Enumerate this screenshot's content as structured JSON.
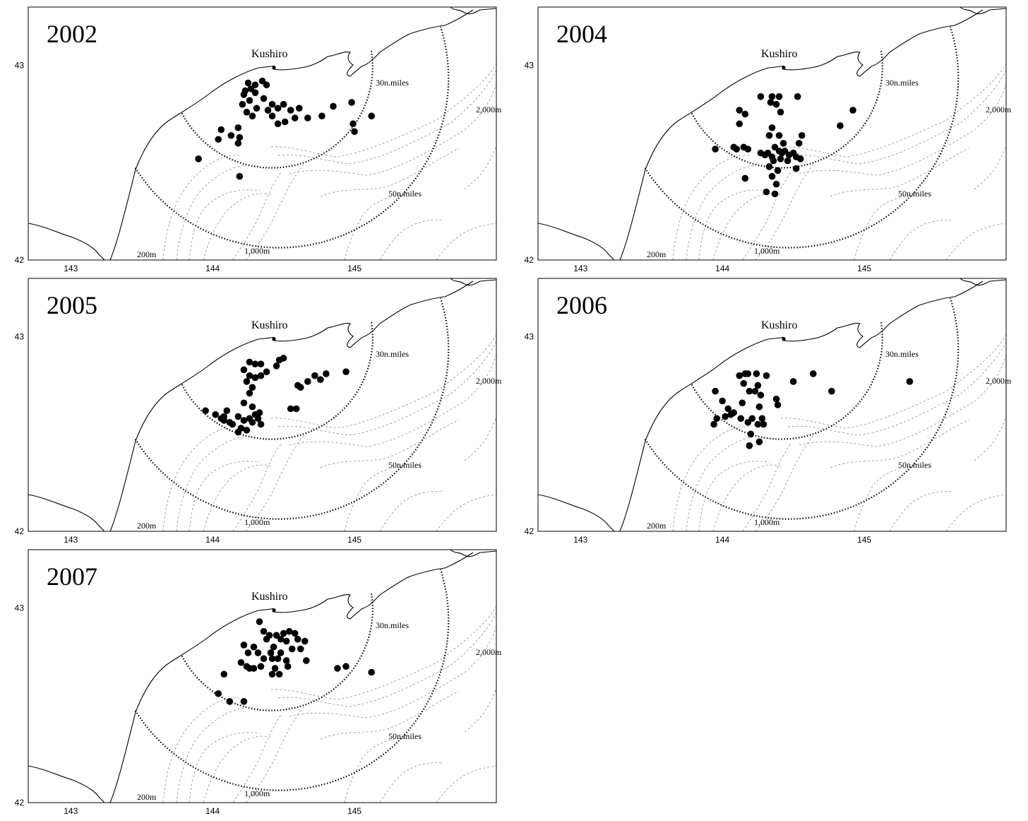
{
  "labels": {
    "place": "Kushiro",
    "ring_inner": "30n.miles",
    "ring_outer": "50n.miles",
    "depth_200": "200m",
    "depth_1000": "1,000m",
    "depth_2000": "2,000m"
  },
  "axes": {
    "x_ticks": [
      "143",
      "144",
      "145"
    ],
    "y_ticks": [
      "43",
      "42"
    ]
  },
  "chart_data": [
    {
      "type": "scatter",
      "title": "2002",
      "xlim": [
        142.7,
        146.0
      ],
      "ylim": [
        42.0,
        43.3
      ],
      "points": [
        [
          144.25,
          42.91
        ],
        [
          144.3,
          42.9
        ],
        [
          144.35,
          42.92
        ],
        [
          144.23,
          42.87
        ],
        [
          144.27,
          42.88
        ],
        [
          144.22,
          42.85
        ],
        [
          144.3,
          42.86
        ],
        [
          144.38,
          42.9
        ],
        [
          144.21,
          42.8
        ],
        [
          144.26,
          42.82
        ],
        [
          144.31,
          42.78
        ],
        [
          144.24,
          42.76
        ],
        [
          144.28,
          42.74
        ],
        [
          144.36,
          42.83
        ],
        [
          144.42,
          42.8
        ],
        [
          144.39,
          42.77
        ],
        [
          144.46,
          42.78
        ],
        [
          144.5,
          42.8
        ],
        [
          144.55,
          42.77
        ],
        [
          144.61,
          42.78
        ],
        [
          144.67,
          42.73
        ],
        [
          144.77,
          42.74
        ],
        [
          144.85,
          42.79
        ],
        [
          144.98,
          42.81
        ],
        [
          145.12,
          42.74
        ],
        [
          144.42,
          42.74
        ],
        [
          144.46,
          42.7
        ],
        [
          144.51,
          42.71
        ],
        [
          144.58,
          42.73
        ],
        [
          144.99,
          42.7
        ],
        [
          145.0,
          42.66
        ],
        [
          144.06,
          42.67
        ],
        [
          144.13,
          42.64
        ],
        [
          144.04,
          42.62
        ],
        [
          144.18,
          42.68
        ],
        [
          144.19,
          42.63
        ],
        [
          144.18,
          42.6
        ],
        [
          143.9,
          42.52
        ],
        [
          144.19,
          42.43
        ]
      ]
    },
    {
      "type": "scatter",
      "title": "2004",
      "xlim": [
        142.7,
        146.0
      ],
      "ylim": [
        42.0,
        43.3
      ],
      "points": [
        [
          144.27,
          42.84
        ],
        [
          144.35,
          42.84
        ],
        [
          144.4,
          42.84
        ],
        [
          144.53,
          42.84
        ],
        [
          144.34,
          42.81
        ],
        [
          144.38,
          42.8
        ],
        [
          144.12,
          42.77
        ],
        [
          144.16,
          42.75
        ],
        [
          144.41,
          42.76
        ],
        [
          144.12,
          42.7
        ],
        [
          144.35,
          42.68
        ],
        [
          144.33,
          42.64
        ],
        [
          144.4,
          42.64
        ],
        [
          144.56,
          42.64
        ],
        [
          144.92,
          42.77
        ],
        [
          144.83,
          42.69
        ],
        [
          143.95,
          42.57
        ],
        [
          144.08,
          42.58
        ],
        [
          144.1,
          42.57
        ],
        [
          144.15,
          42.58
        ],
        [
          144.18,
          42.57
        ],
        [
          144.27,
          42.55
        ],
        [
          144.3,
          42.54
        ],
        [
          144.32,
          42.55
        ],
        [
          144.35,
          42.53
        ],
        [
          144.37,
          42.58
        ],
        [
          144.4,
          42.56
        ],
        [
          144.42,
          42.55
        ],
        [
          144.44,
          42.56
        ],
        [
          144.47,
          42.54
        ],
        [
          144.5,
          42.55
        ],
        [
          144.52,
          42.53
        ],
        [
          144.55,
          42.52
        ],
        [
          144.36,
          42.51
        ],
        [
          144.41,
          42.52
        ],
        [
          144.46,
          42.51
        ],
        [
          144.33,
          42.48
        ],
        [
          144.39,
          42.46
        ],
        [
          144.35,
          42.43
        ],
        [
          144.38,
          42.39
        ],
        [
          144.31,
          42.35
        ],
        [
          144.37,
          42.34
        ],
        [
          144.16,
          42.42
        ],
        [
          144.52,
          42.47
        ],
        [
          144.54,
          42.6
        ],
        [
          144.43,
          42.6
        ]
      ]
    },
    {
      "type": "scatter",
      "title": "2005",
      "xlim": [
        142.7,
        146.0
      ],
      "ylim": [
        42.0,
        43.3
      ],
      "points": [
        [
          144.26,
          42.87
        ],
        [
          144.3,
          42.86
        ],
        [
          144.34,
          42.86
        ],
        [
          144.47,
          42.88
        ],
        [
          144.5,
          42.89
        ],
        [
          144.45,
          42.85
        ],
        [
          144.22,
          42.83
        ],
        [
          144.26,
          42.8
        ],
        [
          144.3,
          42.79
        ],
        [
          144.34,
          42.8
        ],
        [
          144.38,
          42.82
        ],
        [
          144.24,
          42.77
        ],
        [
          144.28,
          42.74
        ],
        [
          144.26,
          42.71
        ],
        [
          144.6,
          42.75
        ],
        [
          144.62,
          42.74
        ],
        [
          144.67,
          42.77
        ],
        [
          144.72,
          42.8
        ],
        [
          144.76,
          42.78
        ],
        [
          144.8,
          42.81
        ],
        [
          144.94,
          42.82
        ],
        [
          144.22,
          42.66
        ],
        [
          144.28,
          42.64
        ],
        [
          144.33,
          42.61
        ],
        [
          144.55,
          42.63
        ],
        [
          144.59,
          42.63
        ],
        [
          143.95,
          42.62
        ],
        [
          144.02,
          42.6
        ],
        [
          144.08,
          42.59
        ],
        [
          144.1,
          42.62
        ],
        [
          144.06,
          42.58
        ],
        [
          144.12,
          42.56
        ],
        [
          144.18,
          42.59
        ],
        [
          144.22,
          42.57
        ],
        [
          144.26,
          42.58
        ],
        [
          144.3,
          42.6
        ],
        [
          144.14,
          42.55
        ],
        [
          144.2,
          42.53
        ],
        [
          144.24,
          42.52
        ],
        [
          144.34,
          42.55
        ],
        [
          144.18,
          42.51
        ],
        [
          144.28,
          42.56
        ],
        [
          144.32,
          42.58
        ],
        [
          144.08,
          42.57
        ]
      ]
    },
    {
      "type": "scatter",
      "title": "2006",
      "xlim": [
        142.7,
        146.0
      ],
      "ylim": [
        42.0,
        43.3
      ],
      "points": [
        [
          144.12,
          42.8
        ],
        [
          144.16,
          42.81
        ],
        [
          144.18,
          42.81
        ],
        [
          144.24,
          42.81
        ],
        [
          144.31,
          42.8
        ],
        [
          144.5,
          42.77
        ],
        [
          144.64,
          42.81
        ],
        [
          144.77,
          42.72
        ],
        [
          145.32,
          42.77
        ],
        [
          144.15,
          42.76
        ],
        [
          144.19,
          42.72
        ],
        [
          144.25,
          42.75
        ],
        [
          144.23,
          42.72
        ],
        [
          144.27,
          42.7
        ],
        [
          143.95,
          42.72
        ],
        [
          144.0,
          42.67
        ],
        [
          144.14,
          42.66
        ],
        [
          144.26,
          42.64
        ],
        [
          144.38,
          42.68
        ],
        [
          144.39,
          42.65
        ],
        [
          144.04,
          42.63
        ],
        [
          144.08,
          42.61
        ],
        [
          144.06,
          42.6
        ],
        [
          144.13,
          42.58
        ],
        [
          144.21,
          42.58
        ],
        [
          144.28,
          42.58
        ],
        [
          144.29,
          42.55
        ],
        [
          144.25,
          42.55
        ],
        [
          143.96,
          42.58
        ],
        [
          143.94,
          42.55
        ],
        [
          144.02,
          42.59
        ],
        [
          144.18,
          42.56
        ],
        [
          144.2,
          42.5
        ],
        [
          144.26,
          42.46
        ],
        [
          144.19,
          42.44
        ]
      ]
    },
    {
      "type": "scatter",
      "title": "2007",
      "xlim": [
        142.7,
        146.0
      ],
      "ylim": [
        42.0,
        43.3
      ],
      "points": [
        [
          144.33,
          42.93
        ],
        [
          144.36,
          42.88
        ],
        [
          144.4,
          42.86
        ],
        [
          144.45,
          42.86
        ],
        [
          144.5,
          42.87
        ],
        [
          144.54,
          42.88
        ],
        [
          144.58,
          42.87
        ],
        [
          144.38,
          42.84
        ],
        [
          144.48,
          42.84
        ],
        [
          144.52,
          42.83
        ],
        [
          144.6,
          42.84
        ],
        [
          144.65,
          42.83
        ],
        [
          144.22,
          42.81
        ],
        [
          144.29,
          42.8
        ],
        [
          144.43,
          42.8
        ],
        [
          144.56,
          42.79
        ],
        [
          144.62,
          42.79
        ],
        [
          144.25,
          42.77
        ],
        [
          144.32,
          42.77
        ],
        [
          144.41,
          42.77
        ],
        [
          144.48,
          42.77
        ],
        [
          144.36,
          42.74
        ],
        [
          144.42,
          42.74
        ],
        [
          144.46,
          42.74
        ],
        [
          144.52,
          42.73
        ],
        [
          144.66,
          42.73
        ],
        [
          144.2,
          42.72
        ],
        [
          144.24,
          42.7
        ],
        [
          144.29,
          42.69
        ],
        [
          144.34,
          42.7
        ],
        [
          144.44,
          42.69
        ],
        [
          144.53,
          42.7
        ],
        [
          144.42,
          42.66
        ],
        [
          144.47,
          42.66
        ],
        [
          144.88,
          42.69
        ],
        [
          144.94,
          42.7
        ],
        [
          144.08,
          42.66
        ],
        [
          145.12,
          42.67
        ],
        [
          144.04,
          42.56
        ],
        [
          144.12,
          42.52
        ],
        [
          144.22,
          42.52
        ],
        [
          144.26,
          42.69
        ]
      ]
    }
  ]
}
